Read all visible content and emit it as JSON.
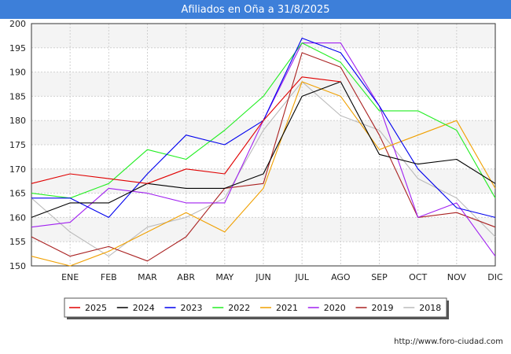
{
  "chart_data": {
    "type": "line",
    "title": "Afiliados en Oña a 31/8/2025",
    "categories": [
      "",
      "ENE",
      "FEB",
      "MAR",
      "ABR",
      "MAY",
      "JUN",
      "JUL",
      "AGO",
      "SEP",
      "OCT",
      "NOV",
      "DIC"
    ],
    "ylim": [
      150,
      200
    ],
    "yticks": [
      150,
      155,
      160,
      165,
      170,
      175,
      180,
      185,
      190,
      195,
      200
    ],
    "grid": true,
    "legend_position": "bottom",
    "series": [
      {
        "name": "2025",
        "color": "#e00000",
        "values": [
          167,
          169,
          168,
          167,
          170,
          169,
          180,
          189,
          188,
          null,
          null,
          null,
          null
        ]
      },
      {
        "name": "2024",
        "color": "#000000",
        "values": [
          160,
          163,
          163,
          167,
          166,
          166,
          169,
          185,
          188,
          173,
          171,
          172,
          167
        ]
      },
      {
        "name": "2023",
        "color": "#0000ee",
        "values": [
          164,
          164,
          160,
          169,
          177,
          175,
          180,
          197,
          194,
          183,
          170,
          162,
          160
        ]
      },
      {
        "name": "2022",
        "color": "#22ee22",
        "values": [
          165,
          164,
          167,
          174,
          172,
          178,
          185,
          196,
          192,
          182,
          182,
          178,
          164
        ]
      },
      {
        "name": "2021",
        "color": "#f0a000",
        "values": [
          152,
          150,
          153,
          157,
          161,
          157,
          166,
          188,
          185,
          174,
          177,
          180,
          166
        ]
      },
      {
        "name": "2020",
        "color": "#a020f0",
        "values": [
          158,
          159,
          166,
          165,
          163,
          163,
          180,
          196,
          196,
          183,
          160,
          163,
          152
        ]
      },
      {
        "name": "2019",
        "color": "#aa2222",
        "values": [
          156,
          152,
          154,
          151,
          156,
          166,
          167,
          194,
          191,
          177,
          160,
          161,
          158
        ]
      },
      {
        "name": "2018",
        "color": "#bbbbbb",
        "values": [
          164,
          157,
          152,
          158,
          160,
          164,
          178,
          188,
          181,
          178,
          168,
          164,
          156
        ]
      }
    ]
  },
  "source": "http://www.foro-ciudad.com"
}
